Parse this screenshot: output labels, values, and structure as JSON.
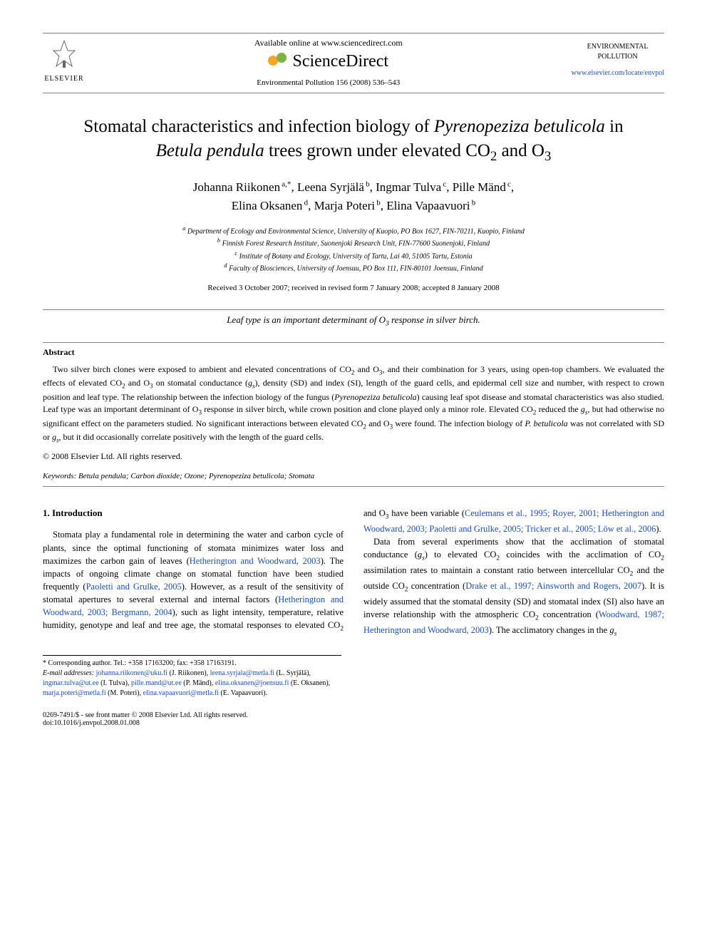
{
  "header": {
    "available_text": "Available online at www.sciencedirect.com",
    "sd_brand": "ScienceDirect",
    "journal_ref": "Environmental Pollution 156 (2008) 536–543",
    "elsevier_label": "ELSEVIER",
    "journal_name_line1": "ENVIRONMENTAL",
    "journal_name_line2": "POLLUTION",
    "journal_url": "www.elsevier.com/locate/envpol"
  },
  "title_parts": {
    "pre1": "Stomatal characteristics and infection biology of ",
    "ital1": "Pyrenopeziza betulicola",
    "pre2": " in ",
    "ital2": "Betula pendula",
    "post": " trees grown under elevated CO",
    "sub1": "2",
    "conj": " and O",
    "sub2": "3"
  },
  "authors": [
    {
      "name": "Johanna Riikonen",
      "affs": "a,*"
    },
    {
      "name": "Leena Syrjälä",
      "affs": "b"
    },
    {
      "name": "Ingmar Tulva",
      "affs": "c"
    },
    {
      "name": "Pille Mänd",
      "affs": "c"
    },
    {
      "name": "Elina Oksanen",
      "affs": "d"
    },
    {
      "name": "Marja Poteri",
      "affs": "b"
    },
    {
      "name": "Elina Vapaavuori",
      "affs": "b"
    }
  ],
  "affiliations": {
    "a": "Department of Ecology and Environmental Science, University of Kuopio, PO Box 1627, FIN-70211, Kuopio, Finland",
    "b": "Finnish Forest Research Institute, Suonenjoki Research Unit, FIN-77600 Suonenjoki, Finland",
    "c": "Institute of Botany and Ecology, University of Tartu, Lai 40, 51005 Tartu, Estonia",
    "d": "Faculty of Biosciences, University of Joensuu, PO Box 111, FIN-80101 Joensuu, Finland"
  },
  "dates": "Received 3 October 2007; received in revised form 7 January 2008; accepted 8 January 2008",
  "highlight": {
    "pre": "Leaf type is an important determinant of O",
    "sub": "3",
    "post": " response in silver birch."
  },
  "abstract": {
    "heading": "Abstract",
    "body_segments": [
      {
        "t": "Two silver birch clones were exposed to ambient and elevated concentrations of CO"
      },
      {
        "sub": "2"
      },
      {
        "t": " and O"
      },
      {
        "sub": "3"
      },
      {
        "t": ", and their combination for 3 years, using open-top chambers. We evaluated the effects of elevated CO"
      },
      {
        "sub": "2"
      },
      {
        "t": " and O"
      },
      {
        "sub": "3"
      },
      {
        "t": " on stomatal conductance ("
      },
      {
        "it": "g"
      },
      {
        "subit": "s"
      },
      {
        "t": "), density (SD) and index (SI), length of the guard cells, and epidermal cell size and number, with respect to crown position and leaf type. The relationship between the infection biology of the fungus ("
      },
      {
        "it": "Pyrenopeziza betulicola"
      },
      {
        "t": ") causing leaf spot disease and stomatal characteristics was also studied. Leaf type was an important determinant of O"
      },
      {
        "sub": "3"
      },
      {
        "t": " response in silver birch, while crown position and clone played only a minor role. Elevated CO"
      },
      {
        "sub": "2"
      },
      {
        "t": " reduced the "
      },
      {
        "it": "g"
      },
      {
        "subit": "s"
      },
      {
        "t": ", but had otherwise no significant effect on the parameters studied. No significant interactions between elevated CO"
      },
      {
        "sub": "2"
      },
      {
        "t": " and O"
      },
      {
        "sub": "3"
      },
      {
        "t": " were found. The infection biology of "
      },
      {
        "it": "P. betulicola"
      },
      {
        "t": " was not correlated with SD or "
      },
      {
        "it": "g"
      },
      {
        "subit": "s"
      },
      {
        "t": ", but it did occasionally correlate positively with the length of the guard cells."
      }
    ],
    "copyright": "© 2008 Elsevier Ltd. All rights reserved."
  },
  "keywords": {
    "label": "Keywords:",
    "items": [
      "Betula pendula",
      "Carbon dioxide",
      "Ozone",
      "Pyrenopeziza betulicola",
      "Stomata"
    ]
  },
  "introduction": {
    "heading": "1. Introduction",
    "para1_segments": [
      {
        "t": "Stomata play a fundamental role in determining the water and carbon cycle of plants, since the optimal functioning of stomata minimizes water loss and maximizes the carbon gain of leaves ("
      },
      {
        "link": "Hetherington and Woodward, 2003"
      },
      {
        "t": "). The impacts of ongoing climate change on stomatal function have been studied frequently ("
      },
      {
        "link": "Paoletti and Grulke, 2005"
      },
      {
        "t": "). However, as a result of the sensitivity of stomatal apertures to several external and internal factors ("
      },
      {
        "link": "Hetherington and Woodward, 2003; Bergmann, 2004"
      },
      {
        "t": "), such as light intensity, temperature, relative humidity, genotype and leaf and tree age, the stomatal responses to elevated CO"
      },
      {
        "sub": "2"
      },
      {
        "t": " and O"
      },
      {
        "sub": "3"
      },
      {
        "t": " have been variable ("
      },
      {
        "link": "Ceulemans et al., 1995; Royer, 2001; Hetherington and Woodward, 2003; Paoletti and Grulke, 2005; Tricker et al., 2005; Löw et al., 2006"
      },
      {
        "t": ")."
      }
    ],
    "para2_segments": [
      {
        "t": "Data from several experiments show that the acclimation of stomatal conductance ("
      },
      {
        "it": "g"
      },
      {
        "subit": "s"
      },
      {
        "t": ") to elevated CO"
      },
      {
        "sub": "2"
      },
      {
        "t": " coincides with the acclimation of CO"
      },
      {
        "sub": "2"
      },
      {
        "t": " assimilation rates to maintain a constant ratio between intercellular CO"
      },
      {
        "sub": "2"
      },
      {
        "t": " and the outside CO"
      },
      {
        "sub": "2"
      },
      {
        "t": " concentration ("
      },
      {
        "link": "Drake et al., 1997; Ainsworth and Rogers, 2007"
      },
      {
        "t": "). It is widely assumed that the stomatal density (SD) and stomatal index (SI) also have an inverse relationship with the atmospheric CO"
      },
      {
        "sub": "2"
      },
      {
        "t": " concentration ("
      },
      {
        "link": "Woodward, 1987; Hetherington and Woodward, 2003"
      },
      {
        "t": "). The acclimatory changes in the "
      },
      {
        "it": "g"
      },
      {
        "subit": "s"
      }
    ]
  },
  "footnotes": {
    "corresponding": "* Corresponding author. Tel.: +358 17163200; fax: +358 17163191.",
    "email_label": "E-mail addresses:",
    "emails": [
      {
        "addr": "johanna.riikonen@uku.fi",
        "who": "(J. Riikonen)"
      },
      {
        "addr": "leena.syrjala@metla.fi",
        "who": "(L. Syrjälä)"
      },
      {
        "addr": "ingmar.tulva@ut.ee",
        "who": "(I. Tulva)"
      },
      {
        "addr": "pille.mand@ut.ee",
        "who": "(P. Mänd)"
      },
      {
        "addr": "elina.oksanen@joensuu.fi",
        "who": "(E. Oksanen)"
      },
      {
        "addr": "marja.poteri@metla.fi",
        "who": "(M. Poteri)"
      },
      {
        "addr": "elina.vapaavuori@metla.fi",
        "who": "(E. Vapaavuori)."
      }
    ]
  },
  "footer": {
    "left": "0269-7491/$ - see front matter © 2008 Elsevier Ltd. All rights reserved.",
    "doi": "doi:10.1016/j.envpol.2008.01.008"
  },
  "colors": {
    "link": "#1a4fb3",
    "text": "#000000",
    "rule": "#808080"
  }
}
